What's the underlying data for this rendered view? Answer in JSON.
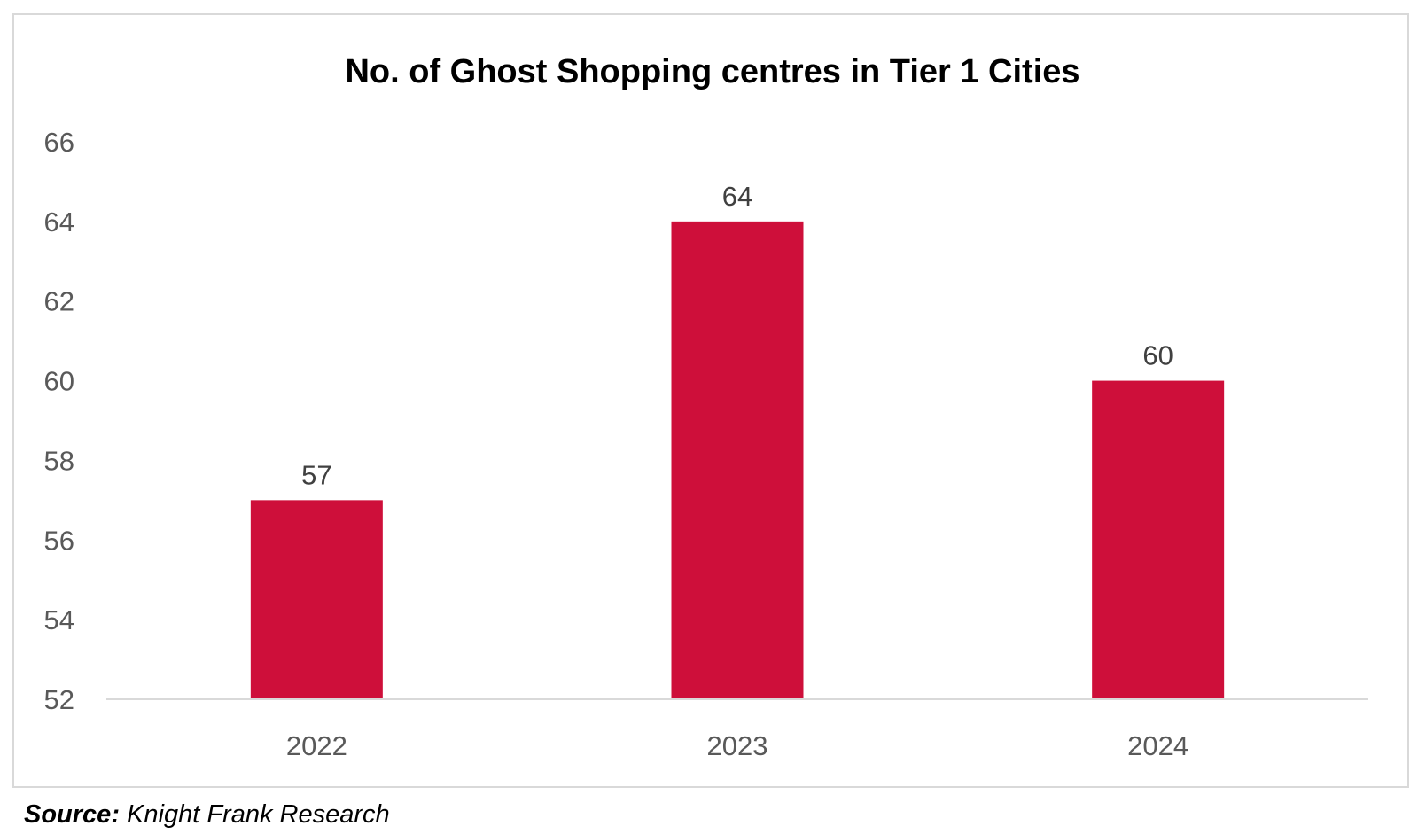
{
  "chart_data": {
    "type": "bar",
    "title": "No. of Ghost Shopping centres in Tier 1 Cities",
    "categories": [
      "2022",
      "2023",
      "2024"
    ],
    "values": [
      57,
      64,
      60
    ],
    "data_labels": [
      "57",
      "64",
      "60"
    ],
    "xlabel": "",
    "ylabel": "",
    "ylim": [
      52,
      66
    ],
    "yticks": [
      "52",
      "54",
      "56",
      "58",
      "60",
      "62",
      "64",
      "66"
    ],
    "grid": false,
    "bar_color": "#CE0F3A",
    "legend": "none"
  },
  "source": {
    "label": "Source:",
    "text": "Knight Frank Research"
  }
}
